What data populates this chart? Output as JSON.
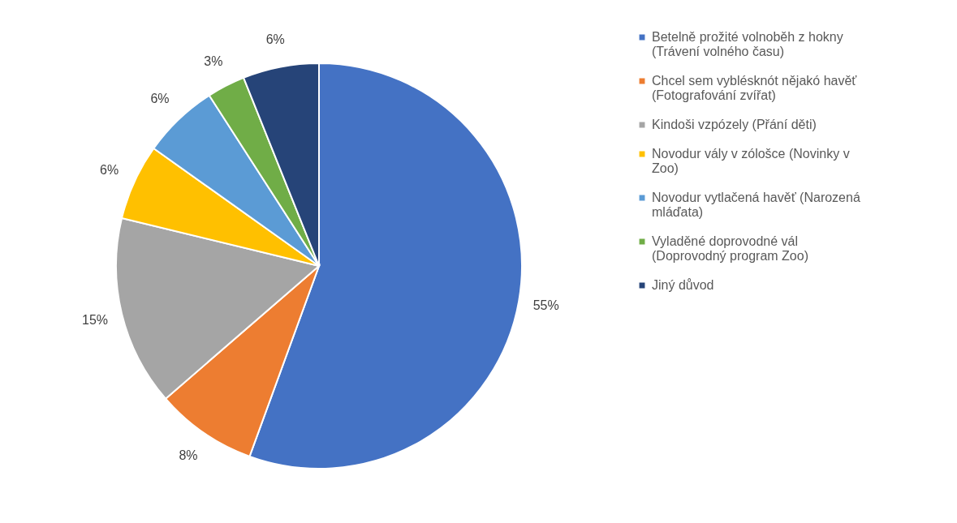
{
  "chart_data": {
    "type": "pie",
    "categories": [
      "Betelně prožité volnoběh z hokny (Trávení volného času)",
      "Chcel sem vyblésknót nějakó havěť (Fotografování zvířat)",
      "Kindoši vzpózely (Přání děti)",
      "Novodur vály v zólošce (Novinky v Zoo)",
      "Novodur vytlačená havěť (Narozená mláďata)",
      "Vyladěné doprovodné vál (Doprovodný program Zoo)",
      "Jiný důvod"
    ],
    "values": [
      55,
      8,
      15,
      6,
      6,
      3,
      6
    ],
    "value_labels": [
      "55%",
      "8%",
      "15%",
      "6%",
      "6%",
      "3%",
      "6%"
    ],
    "colors": [
      "#4472c4",
      "#ed7d31",
      "#a5a5a5",
      "#ffc000",
      "#5b9bd5",
      "#70ad47",
      "#264478"
    ],
    "legend": "right"
  }
}
